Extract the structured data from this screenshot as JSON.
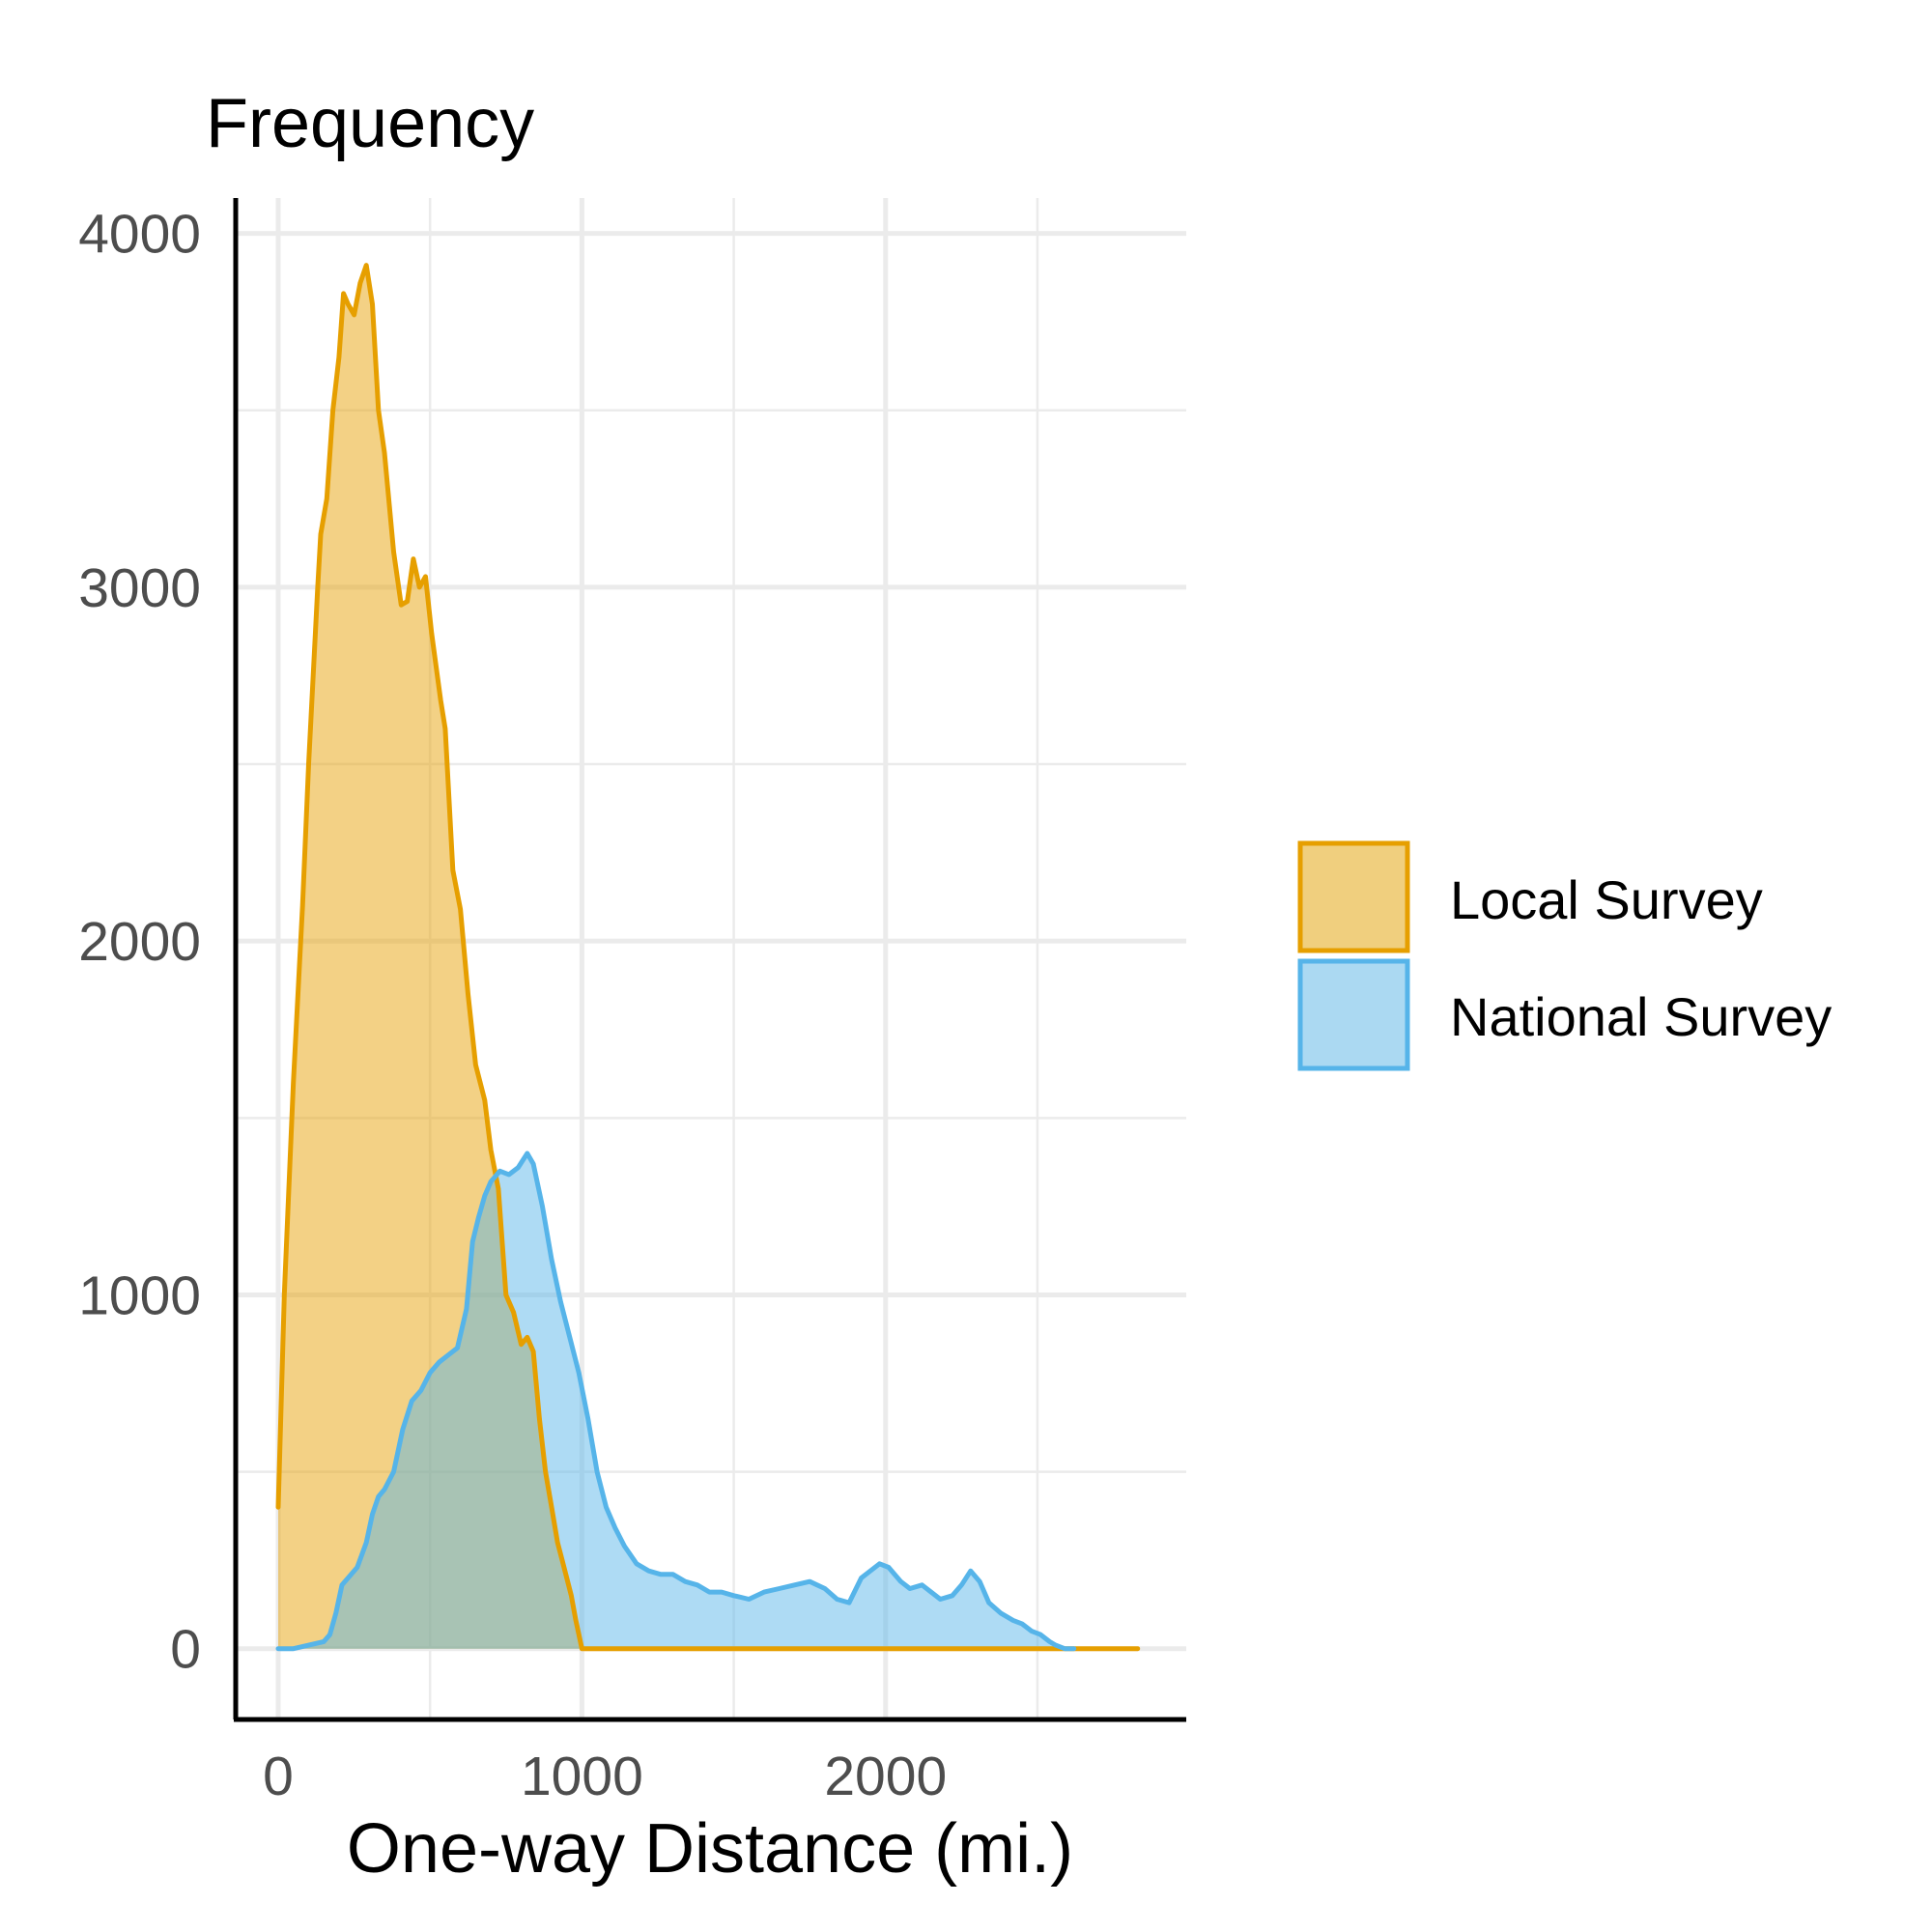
{
  "colors": {
    "local_stroke": "#E69F00",
    "local_fill": "#F0CF7E",
    "national_stroke": "#56B4E9",
    "national_fill": "#ABD9F2",
    "overlap_fill": "#A7BFB3",
    "grid": "#EBEBEB",
    "axis": "#000000",
    "tick_text": "#4D4D4D"
  },
  "chart_data": {
    "type": "area",
    "title": "",
    "xlabel": "One-way Distance (mi.)",
    "ylabel": "Frequency",
    "xlim": [
      -140,
      2990
    ],
    "ylim": [
      -200,
      4100
    ],
    "x_ticks": [
      0,
      1000,
      2000
    ],
    "x_tick_labels": [
      "0",
      "1000",
      "2000"
    ],
    "x_minor_ticks": [
      500,
      1500,
      2500
    ],
    "y_ticks": [
      0,
      1000,
      2000,
      3000,
      4000
    ],
    "y_tick_labels": [
      "0",
      "1000",
      "2000",
      "3000",
      "4000"
    ],
    "y_minor_ticks": [
      500,
      1500,
      2500,
      3500
    ],
    "grid": true,
    "legend_position": "right",
    "series": [
      {
        "name": "Local Survey",
        "stroke_key": "local_stroke",
        "fill_key": "local_fill",
        "points": [
          [
            0,
            400
          ],
          [
            20,
            1000
          ],
          [
            50,
            1600
          ],
          [
            80,
            2100
          ],
          [
            100,
            2500
          ],
          [
            130,
            3000
          ],
          [
            140,
            3150
          ],
          [
            160,
            3250
          ],
          [
            180,
            3500
          ],
          [
            200,
            3650
          ],
          [
            215,
            3830
          ],
          [
            230,
            3800
          ],
          [
            250,
            3770
          ],
          [
            270,
            3860
          ],
          [
            290,
            3910
          ],
          [
            310,
            3800
          ],
          [
            330,
            3500
          ],
          [
            350,
            3380
          ],
          [
            380,
            3100
          ],
          [
            405,
            2950
          ],
          [
            425,
            2960
          ],
          [
            445,
            3080
          ],
          [
            465,
            3000
          ],
          [
            485,
            3030
          ],
          [
            505,
            2870
          ],
          [
            535,
            2680
          ],
          [
            550,
            2600
          ],
          [
            575,
            2200
          ],
          [
            600,
            2090
          ],
          [
            625,
            1850
          ],
          [
            650,
            1650
          ],
          [
            680,
            1550
          ],
          [
            700,
            1410
          ],
          [
            725,
            1300
          ],
          [
            750,
            1000
          ],
          [
            775,
            950
          ],
          [
            800,
            860
          ],
          [
            820,
            880
          ],
          [
            840,
            840
          ],
          [
            860,
            650
          ],
          [
            880,
            500
          ],
          [
            900,
            400
          ],
          [
            920,
            300
          ],
          [
            935,
            250
          ],
          [
            950,
            200
          ],
          [
            965,
            150
          ],
          [
            980,
            80
          ],
          [
            1000,
            0
          ],
          [
            1100,
            0
          ],
          [
            1500,
            0
          ],
          [
            2000,
            0
          ],
          [
            2500,
            0
          ],
          [
            2830,
            0
          ]
        ]
      },
      {
        "name": "National Survey",
        "stroke_key": "national_stroke",
        "fill_key": "national_fill",
        "points": [
          [
            0,
            0
          ],
          [
            50,
            0
          ],
          [
            100,
            10
          ],
          [
            150,
            20
          ],
          [
            170,
            40
          ],
          [
            190,
            100
          ],
          [
            210,
            180
          ],
          [
            230,
            200
          ],
          [
            260,
            230
          ],
          [
            290,
            300
          ],
          [
            310,
            380
          ],
          [
            330,
            430
          ],
          [
            350,
            450
          ],
          [
            380,
            500
          ],
          [
            410,
            620
          ],
          [
            440,
            700
          ],
          [
            470,
            730
          ],
          [
            500,
            780
          ],
          [
            530,
            810
          ],
          [
            560,
            830
          ],
          [
            590,
            850
          ],
          [
            620,
            960
          ],
          [
            640,
            1150
          ],
          [
            660,
            1220
          ],
          [
            680,
            1280
          ],
          [
            700,
            1320
          ],
          [
            730,
            1350
          ],
          [
            760,
            1340
          ],
          [
            790,
            1360
          ],
          [
            820,
            1400
          ],
          [
            840,
            1370
          ],
          [
            870,
            1250
          ],
          [
            900,
            1100
          ],
          [
            930,
            980
          ],
          [
            960,
            880
          ],
          [
            990,
            780
          ],
          [
            1020,
            650
          ],
          [
            1050,
            500
          ],
          [
            1080,
            400
          ],
          [
            1110,
            340
          ],
          [
            1140,
            290
          ],
          [
            1180,
            240
          ],
          [
            1220,
            220
          ],
          [
            1260,
            210
          ],
          [
            1300,
            210
          ],
          [
            1340,
            190
          ],
          [
            1380,
            180
          ],
          [
            1420,
            160
          ],
          [
            1460,
            160
          ],
          [
            1500,
            150
          ],
          [
            1550,
            140
          ],
          [
            1600,
            160
          ],
          [
            1650,
            170
          ],
          [
            1700,
            180
          ],
          [
            1750,
            190
          ],
          [
            1800,
            170
          ],
          [
            1840,
            140
          ],
          [
            1880,
            130
          ],
          [
            1920,
            200
          ],
          [
            1950,
            220
          ],
          [
            1980,
            240
          ],
          [
            2010,
            230
          ],
          [
            2050,
            190
          ],
          [
            2080,
            170
          ],
          [
            2120,
            180
          ],
          [
            2150,
            160
          ],
          [
            2180,
            140
          ],
          [
            2220,
            150
          ],
          [
            2250,
            180
          ],
          [
            2280,
            220
          ],
          [
            2310,
            190
          ],
          [
            2340,
            130
          ],
          [
            2380,
            100
          ],
          [
            2420,
            80
          ],
          [
            2450,
            70
          ],
          [
            2480,
            50
          ],
          [
            2510,
            40
          ],
          [
            2540,
            20
          ],
          [
            2560,
            10
          ],
          [
            2590,
            0
          ],
          [
            2620,
            0
          ]
        ]
      }
    ]
  },
  "legend": {
    "items": [
      {
        "label": "Local Survey",
        "stroke_key": "local_stroke",
        "fill_key": "local_fill"
      },
      {
        "label": "National Survey",
        "stroke_key": "national_stroke",
        "fill_key": "national_fill"
      }
    ]
  }
}
